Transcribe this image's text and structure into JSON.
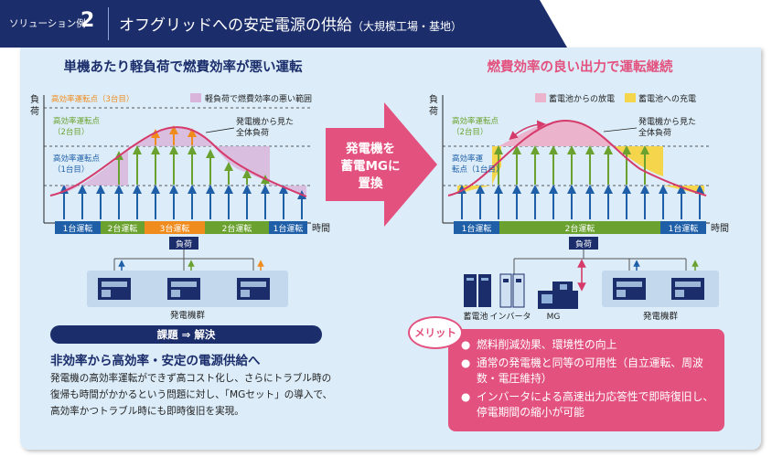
{
  "header": {
    "solution_label": "ソリューション例",
    "solution_number": "2",
    "title": "オフグリッドへの安定電源の供給",
    "subtitle": "（大規模工場・基地）"
  },
  "left": {
    "heading": "単機あたり軽負荷で燃費効率が悪い運転",
    "y_label": "負荷",
    "x_label": "時間",
    "point3_label": "高効率運転点（3台目）",
    "point2_label": [
      "高効率運転点",
      "（2台目）"
    ],
    "point1_label": [
      "高効率運転点",
      "（1台目）"
    ],
    "legend_label": "軽負荷で燃費効率の悪い範囲",
    "total_load_label": [
      "発電機から見た",
      "全体負荷"
    ],
    "phases": [
      "1台運転",
      "2台運転",
      "3台運転",
      "2台運転",
      "1台運転"
    ],
    "load_label": "負荷",
    "group_label": "発電機群"
  },
  "arrow_text": [
    "発電機を",
    "蓄電MGに",
    "置換"
  ],
  "right": {
    "heading": "燃費効率の良い出力で運転継続",
    "y_label": "負荷",
    "x_label": "時間",
    "legend_discharge": "蓄電池からの放電",
    "legend_charge": "蓄電池への充電",
    "point2_label": [
      "高効率運転点",
      "（2台目）"
    ],
    "point1_label": [
      "高効率運",
      "転点（1台目）"
    ],
    "total_load_label": [
      "発電機から見た",
      "全体負荷"
    ],
    "phases": [
      "1台運転",
      "2台運転",
      "1台運転"
    ],
    "load_label": "負荷",
    "battery_label": "蓄電池",
    "inverter_label": "インバータ",
    "mg_label": "MG",
    "group_label": "発電機群"
  },
  "solution": {
    "bar_label": "課題 ⇒ 解決",
    "heading": "非効率から高効率・安定の電源供給へ",
    "body": "発電機の高効率運転ができず高コスト化し、さらにトラブル時の復帰も時間がかかるという問題に対し、「MGセット」の導入で、高効率かつトラブル時にも即時復旧を実現。"
  },
  "merit": {
    "badge": "メリット",
    "items": [
      "燃料削減効果、環境性の向上",
      "通常の発電機と同等の可用性（自立運転、周波数・電圧維持）",
      "インバータによる高速出力応答性で即時復旧し、停電期間の縮小が可能"
    ]
  },
  "colors": {
    "navy": "#1b2d6b",
    "blue_arrow": "#1f5fa8",
    "green_arrow": "#6aa12f",
    "orange_arrow": "#f08c1e",
    "pink": "#e3527f",
    "light_pink_fill": "#d9b5dc",
    "yellow_fill": "#f5d54b"
  }
}
